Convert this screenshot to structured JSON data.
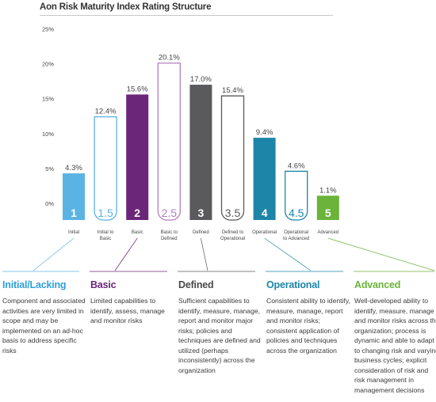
{
  "chart_data": {
    "type": "bar",
    "title": "Aon Risk Maturity Index Rating Structure",
    "ylim": [
      0,
      25
    ],
    "yticks": [
      0,
      5,
      10,
      15,
      20,
      25
    ],
    "ytick_labels": [
      "0%",
      "5%",
      "10%",
      "15%",
      "20%",
      "25%"
    ],
    "grid": false,
    "categories": [
      "Initial",
      "Initial to Basic",
      "Basic",
      "Basic to Defined",
      "Defined",
      "Defined to Operational",
      "Operational",
      "Operational to Advanced",
      "Advanced"
    ],
    "category_lines": [
      [
        "Initial"
      ],
      [
        "Initial to",
        "Basic"
      ],
      [
        "Basic"
      ],
      [
        "Basic to",
        "Defined"
      ],
      [
        "Defined"
      ],
      [
        "Defined to",
        "Operational"
      ],
      [
        "Operational"
      ],
      [
        "Operational",
        "to Advanced"
      ],
      [
        "Advanced"
      ]
    ],
    "ratings": [
      "1",
      "1.5",
      "2",
      "2.5",
      "3",
      "3.5",
      "4",
      "4.5",
      "5"
    ],
    "values": [
      4.3,
      12.4,
      15.6,
      20.1,
      17.0,
      15.4,
      9.4,
      4.6,
      1.1
    ],
    "value_labels": [
      "4.3%",
      "12.4%",
      "15.6%",
      "20.1%",
      "17.0%",
      "15.4%",
      "9.4%",
      "4.6%",
      "1.1%"
    ],
    "filled": [
      true,
      false,
      true,
      false,
      true,
      false,
      true,
      false,
      true
    ],
    "colors": [
      "#5bb3e4",
      "#5bb3e4",
      "#6b2679",
      "#b27fc0",
      "#5a5a5c",
      "#5a5a5c",
      "#1d85a8",
      "#1d85a8",
      "#6bb33a"
    ]
  },
  "descriptions": [
    {
      "title": "Initial/Lacking",
      "color": "#2f9fd8",
      "text": "Component and associated activities are very limited in scope and may be implemented on an ad-hoc basis to address specific risks"
    },
    {
      "title": "Basic",
      "color": "#6b2679",
      "text": "Limited capabilities to identify, assess, manage and monitor risks"
    },
    {
      "title": "Defined",
      "color": "#4a4a4c",
      "text": "Sufficient capabilities to identify, measure, manage, report and monitor major risks; policies and techniques are defined and utilized (perhaps inconsistently) across the organization"
    },
    {
      "title": "Operational",
      "color": "#1d85a8",
      "text": "Consistent ability to identify, measure, manage, report and monitor risks; consistent application of policies and techniques across the organization"
    },
    {
      "title": "Advanced",
      "color": "#6bb33a",
      "text": "Well-developed ability to identify, measure, manage and monitor risks across the organization; process is dynamic and able to adapt to changing risk and varying business cycles; explicit consideration of risk and risk management in management decisions"
    }
  ]
}
